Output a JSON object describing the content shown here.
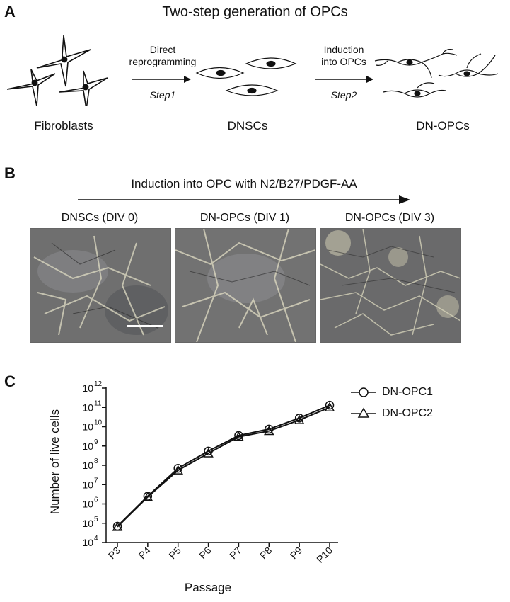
{
  "panelA": {
    "letter": "A",
    "title": "Two-step generation of OPCs",
    "cells": [
      "Fibroblasts",
      "DNSCs",
      "DN-OPCs"
    ],
    "step1": {
      "line1": "Direct",
      "line2": "reprogramming",
      "step": "Step1"
    },
    "step2": {
      "line1": "Induction",
      "line2": "into OPCs",
      "step": "Step2"
    }
  },
  "panelB": {
    "letter": "B",
    "arrow_label": "Induction into OPC with N2/B27/PDGF-AA",
    "images": [
      {
        "label": "DNSCs (DIV 0)"
      },
      {
        "label": "DN-OPCs (DIV 1)"
      },
      {
        "label": "DN-OPCs (DIV 3)"
      }
    ]
  },
  "panelC": {
    "letter": "C"
  },
  "chart_data": {
    "type": "line",
    "xlabel": "Passage",
    "ylabel": "Number of live cells",
    "yscale": "log",
    "ylim": [
      10000,
      1000000000000
    ],
    "y_tick_bases": [
      "10",
      "10",
      "10",
      "10",
      "10",
      "10",
      "10",
      "10",
      "10"
    ],
    "y_tick_exponents": [
      "4",
      "5",
      "6",
      "7",
      "8",
      "9",
      "10",
      "11",
      "12"
    ],
    "categories": [
      "P3",
      "P4",
      "P5",
      "P6",
      "P7",
      "P8",
      "P9",
      "P10"
    ],
    "series": [
      {
        "name": "DN-OPC1",
        "marker": "circle",
        "values": [
          70000,
          2500000,
          70000000,
          550000000,
          3500000000,
          7500000000,
          28000000000,
          130000000000
        ]
      },
      {
        "name": "DN-OPC2",
        "marker": "triangle",
        "values": [
          65000,
          2300000,
          55000000,
          420000000,
          3000000000,
          6000000000,
          22000000000,
          100000000000
        ]
      }
    ],
    "legend": "top-right",
    "grid": false
  }
}
